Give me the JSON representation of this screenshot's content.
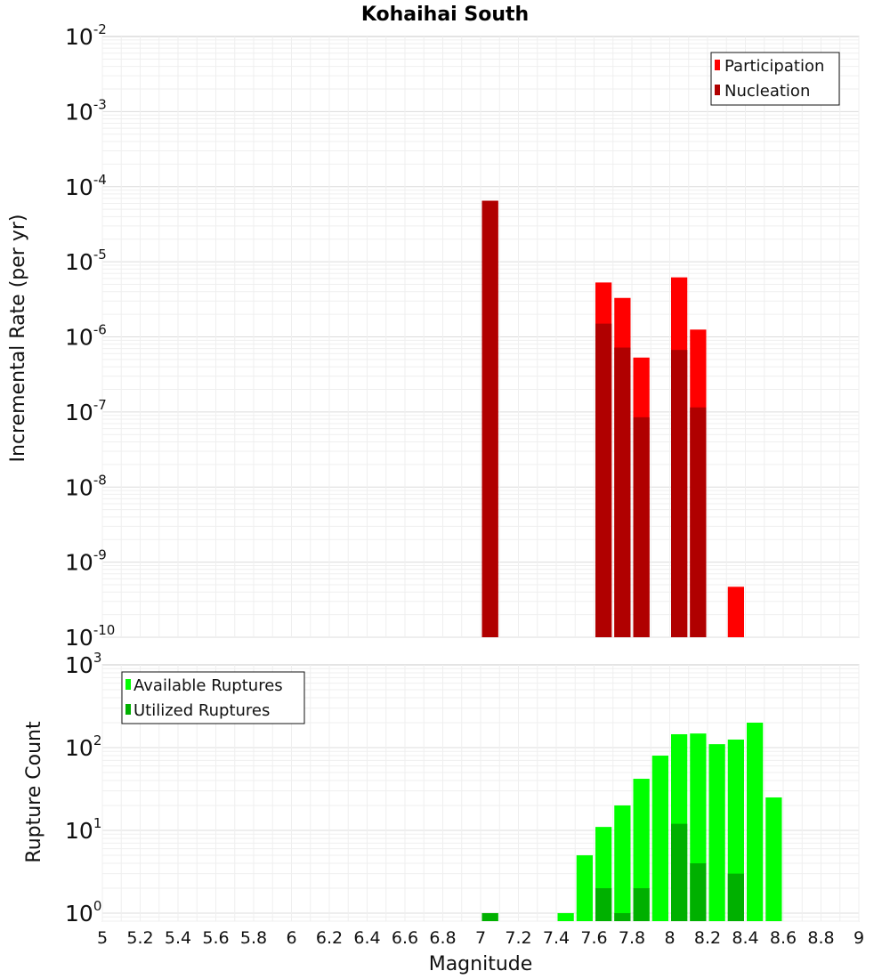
{
  "title": "Kohaihai South",
  "chart_data": [
    {
      "type": "bar",
      "name": "rate-panel",
      "ylabel": "Incremental Rate (per yr)",
      "yscale": "log",
      "ylim": [
        1e-10,
        0.01
      ],
      "xlim": [
        5,
        9
      ],
      "bar_width": 0.1,
      "grid": true,
      "legend_position": "top-right",
      "yticks": [
        {
          "base": "10",
          "exp": "-10",
          "value": 1e-10
        },
        {
          "base": "10",
          "exp": "-9",
          "value": 1e-09
        },
        {
          "base": "10",
          "exp": "-8",
          "value": 1e-08
        },
        {
          "base": "10",
          "exp": "-7",
          "value": 1e-07
        },
        {
          "base": "10",
          "exp": "-6",
          "value": 1e-06
        },
        {
          "base": "10",
          "exp": "-5",
          "value": 1e-05
        },
        {
          "base": "10",
          "exp": "-4",
          "value": 0.0001
        },
        {
          "base": "10",
          "exp": "-3",
          "value": 0.001
        },
        {
          "base": "10",
          "exp": "-2",
          "value": 0.01
        }
      ],
      "series": [
        {
          "name": "Participation",
          "color": "#ff0000",
          "x": [
            7.05,
            7.65,
            7.75,
            7.85,
            8.05,
            8.15,
            8.35
          ],
          "values": [
            6.5e-05,
            5.3e-06,
            3.3e-06,
            5.3e-07,
            6.2e-06,
            1.25e-06,
            4.7e-10
          ]
        },
        {
          "name": "Nucleation",
          "color": "#b00000",
          "x": [
            7.05,
            7.65,
            7.75,
            7.85,
            8.05,
            8.15
          ],
          "values": [
            6.5e-05,
            1.5e-06,
            7.2e-07,
            8.5e-08,
            6.7e-07,
            1.15e-07
          ]
        }
      ]
    },
    {
      "type": "bar",
      "name": "count-panel",
      "ylabel": "Rupture Count",
      "xlabel": "Magnitude",
      "yscale": "log",
      "ylim": [
        0.8,
        1000
      ],
      "xlim": [
        5,
        9
      ],
      "bar_width": 0.1,
      "grid": true,
      "legend_position": "top-left",
      "yticks": [
        {
          "base": "10",
          "exp": "0",
          "value": 1
        },
        {
          "base": "10",
          "exp": "1",
          "value": 10
        },
        {
          "base": "10",
          "exp": "2",
          "value": 100
        },
        {
          "base": "10",
          "exp": "3",
          "value": 1000
        }
      ],
      "xticks": [
        "5",
        "5.2",
        "5.4",
        "5.6",
        "5.8",
        "6",
        "6.2",
        "6.4",
        "6.6",
        "6.8",
        "7",
        "7.2",
        "7.4",
        "7.6",
        "7.8",
        "8",
        "8.2",
        "8.4",
        "8.6",
        "8.8",
        "9"
      ],
      "series": [
        {
          "name": "Available Ruptures",
          "color": "#00ff00",
          "x": [
            7.05,
            7.45,
            7.55,
            7.65,
            7.75,
            7.85,
            7.95,
            8.05,
            8.15,
            8.25,
            8.35,
            8.45,
            8.55
          ],
          "values": [
            1,
            1,
            5,
            11,
            20,
            42,
            80,
            145,
            148,
            110,
            125,
            200,
            25
          ]
        },
        {
          "name": "Utilized Ruptures",
          "color": "#00b000",
          "x": [
            7.05,
            7.65,
            7.75,
            7.85,
            8.05,
            8.15,
            8.35
          ],
          "values": [
            1,
            2,
            1,
            2,
            12,
            4,
            3
          ]
        }
      ]
    }
  ]
}
